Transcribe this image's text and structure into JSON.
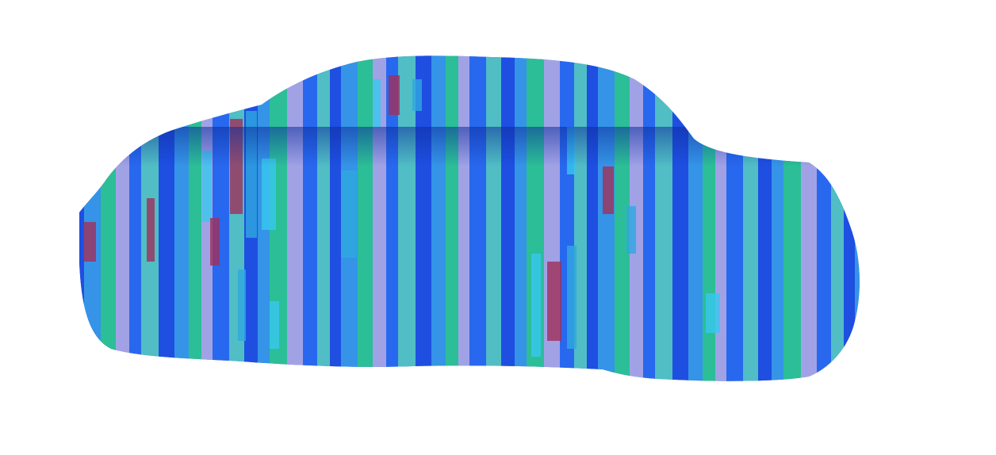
{
  "image": {
    "background_color": "#ffffff",
    "subject": "car-silhouette",
    "texture": "vertical-striped-field",
    "stripe_colors": [
      "#1f4fe0",
      "#3aa0e8",
      "#2fd18a",
      "#b8b0e6",
      "#2a6cf0",
      "#5ad0c0"
    ],
    "patch_colors": [
      "#38c8f0",
      "#a0305a",
      "#30a8e0"
    ]
  }
}
